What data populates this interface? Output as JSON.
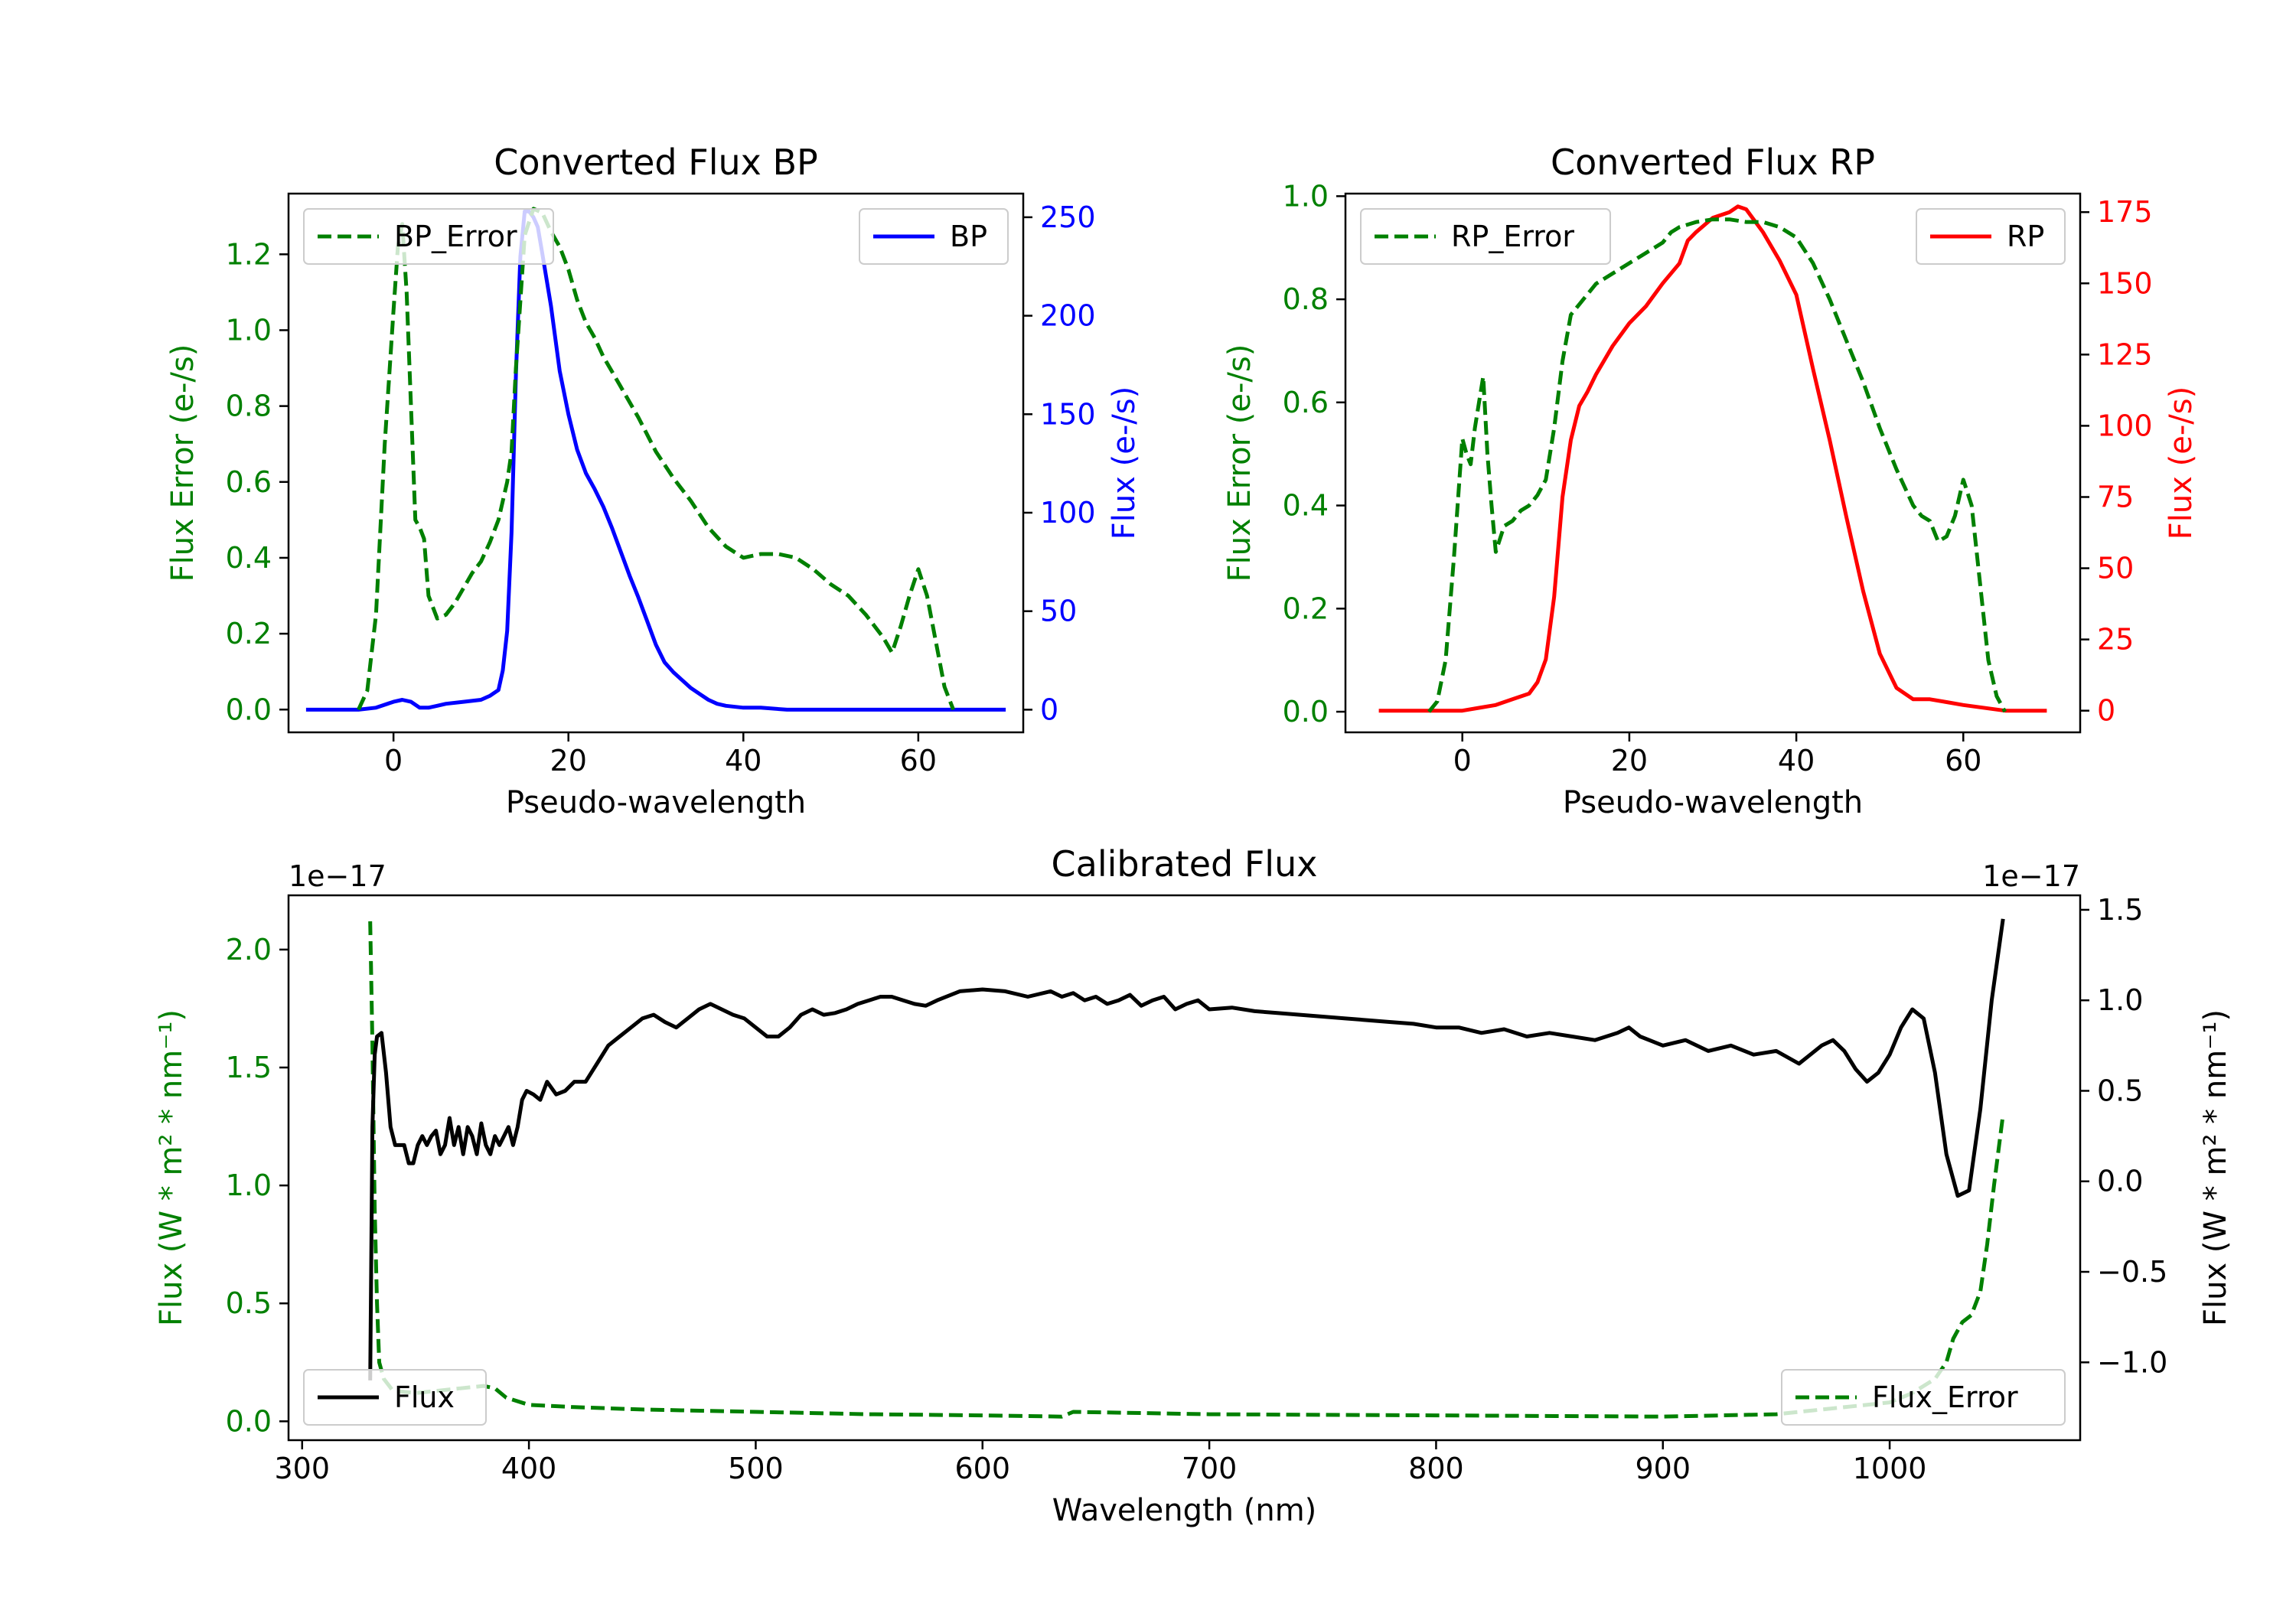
{
  "colors": {
    "bp": "#0000ff",
    "rp": "#ff0000",
    "error": "#008000",
    "flux": "#000000",
    "axis": "#000000"
  },
  "chart_data": [
    {
      "id": "bp",
      "type": "line",
      "title": "Converted Flux BP",
      "xlabel": "Pseudo-wavelength",
      "ylabel_left": "Flux Error (e-/s)",
      "ylabel_right": "Flux (e-/s)",
      "xlim": [
        -12,
        72
      ],
      "ylim_left": [
        -0.06,
        1.36
      ],
      "ylim_right": [
        -11.5,
        262
      ],
      "xticks": [
        0,
        20,
        40,
        60
      ],
      "yticks_left": [
        0.0,
        0.2,
        0.4,
        0.6,
        0.8,
        1.0,
        1.2
      ],
      "yticks_left_labels": [
        "0.0",
        "0.2",
        "0.4",
        "0.6",
        "0.8",
        "1.0",
        "1.2"
      ],
      "yticks_right": [
        0,
        50,
        100,
        150,
        200,
        250
      ],
      "yticks_right_labels": [
        "0",
        "50",
        "100",
        "150",
        "200",
        "250"
      ],
      "legend_left": {
        "label": "BP_Error",
        "position": "top-left"
      },
      "legend_right": {
        "label": "BP",
        "position": "top-right"
      },
      "series": [
        {
          "name": "BP_Error",
          "axis": "left",
          "style": "dashed",
          "color": "#008000",
          "x": [
            -4,
            -3,
            -2,
            -1,
            0,
            0.5,
            1,
            1.5,
            2,
            2.5,
            3,
            3.5,
            4,
            5,
            6,
            7,
            8,
            9,
            10,
            11,
            12,
            13,
            13.5,
            14,
            15,
            16,
            17,
            18,
            19,
            20,
            21,
            22,
            23,
            24,
            25,
            26,
            28,
            30,
            32,
            34,
            36,
            38,
            40,
            42,
            44,
            46,
            48,
            50,
            52,
            54,
            56,
            57,
            58,
            59,
            60,
            61,
            62,
            63,
            64
          ],
          "y": [
            0.0,
            0.05,
            0.25,
            0.7,
            1.05,
            1.22,
            1.28,
            1.1,
            0.8,
            0.5,
            0.48,
            0.45,
            0.3,
            0.24,
            0.25,
            0.28,
            0.32,
            0.36,
            0.39,
            0.44,
            0.5,
            0.6,
            0.68,
            0.9,
            1.25,
            1.32,
            1.31,
            1.26,
            1.22,
            1.16,
            1.08,
            1.02,
            0.98,
            0.93,
            0.89,
            0.85,
            0.77,
            0.68,
            0.61,
            0.55,
            0.48,
            0.43,
            0.4,
            0.41,
            0.41,
            0.4,
            0.37,
            0.33,
            0.3,
            0.25,
            0.19,
            0.15,
            0.22,
            0.3,
            0.37,
            0.3,
            0.18,
            0.06,
            0.0
          ]
        },
        {
          "name": "BP",
          "axis": "right",
          "style": "solid",
          "color": "#0000ff",
          "x": [
            -10,
            -6,
            -4,
            -2,
            0,
            1,
            2,
            3,
            4,
            5,
            6,
            8,
            10,
            11,
            12,
            12.5,
            13,
            13.5,
            14,
            14.5,
            15,
            15.5,
            16,
            16.5,
            17,
            18,
            19,
            20,
            21,
            22,
            23,
            24,
            25,
            26,
            27,
            28,
            29,
            30,
            31,
            32,
            33,
            34,
            35,
            36,
            37,
            38,
            40,
            42,
            45,
            50,
            55,
            60,
            65,
            70
          ],
          "y": [
            0,
            0,
            0,
            1,
            4,
            5,
            4,
            1,
            1,
            2,
            3,
            4,
            5,
            7,
            10,
            20,
            40,
            90,
            170,
            230,
            253,
            253,
            250,
            245,
            232,
            205,
            172,
            150,
            132,
            120,
            112,
            103,
            92,
            80,
            68,
            57,
            45,
            33,
            24,
            19,
            15,
            11,
            8,
            5,
            3,
            2,
            1,
            1,
            0,
            0,
            0,
            0,
            0,
            0
          ]
        }
      ]
    },
    {
      "id": "rp",
      "type": "line",
      "title": "Converted Flux RP",
      "xlabel": "Pseudo-wavelength",
      "ylabel_left": "Flux Error (e-/s)",
      "ylabel_right": "Flux (e-/s)",
      "xlim": [
        -14,
        74
      ],
      "ylim_left": [
        -0.04,
        1.005
      ],
      "ylim_right": [
        -7.6,
        181.5
      ],
      "xticks": [
        0,
        20,
        40,
        60
      ],
      "yticks_left": [
        0.0,
        0.2,
        0.4,
        0.6,
        0.8,
        1.0
      ],
      "yticks_left_labels": [
        "0.0",
        "0.2",
        "0.4",
        "0.6",
        "0.8",
        "1.0"
      ],
      "yticks_right": [
        0,
        25,
        50,
        75,
        100,
        125,
        150,
        175
      ],
      "yticks_right_labels": [
        "0",
        "25",
        "50",
        "75",
        "100",
        "125",
        "150",
        "175"
      ],
      "legend_left": {
        "label": "RP_Error",
        "position": "top-left"
      },
      "legend_right": {
        "label": "RP",
        "position": "top-right"
      },
      "series": [
        {
          "name": "RP_Error",
          "axis": "left",
          "style": "dashed",
          "color": "#008000",
          "x": [
            -4,
            -3,
            -2,
            -1,
            0,
            0.5,
            1,
            1.5,
            2,
            2.5,
            3,
            3.5,
            4,
            5,
            6,
            7,
            8,
            9,
            10,
            11,
            12,
            13,
            14,
            16,
            18,
            20,
            22,
            24,
            25,
            26,
            28,
            30,
            32,
            34,
            36,
            38,
            40,
            42,
            44,
            46,
            48,
            50,
            52,
            54,
            55,
            56,
            57,
            58,
            59,
            60,
            61,
            62,
            63,
            64,
            65
          ],
          "y": [
            0.0,
            0.02,
            0.1,
            0.3,
            0.53,
            0.5,
            0.48,
            0.55,
            0.6,
            0.65,
            0.5,
            0.4,
            0.31,
            0.36,
            0.37,
            0.39,
            0.4,
            0.42,
            0.45,
            0.55,
            0.68,
            0.77,
            0.79,
            0.83,
            0.85,
            0.87,
            0.89,
            0.91,
            0.93,
            0.94,
            0.95,
            0.955,
            0.955,
            0.95,
            0.95,
            0.94,
            0.92,
            0.87,
            0.8,
            0.72,
            0.64,
            0.55,
            0.47,
            0.4,
            0.38,
            0.37,
            0.33,
            0.34,
            0.38,
            0.45,
            0.4,
            0.25,
            0.1,
            0.03,
            0.0
          ]
        },
        {
          "name": "RP",
          "axis": "right",
          "style": "solid",
          "color": "#ff0000",
          "x": [
            -10,
            -4,
            0,
            2,
            4,
            6,
            8,
            9,
            10,
            11,
            12,
            13,
            14,
            15,
            16,
            18,
            20,
            22,
            24,
            26,
            27,
            28,
            30,
            32,
            33,
            34,
            36,
            38,
            40,
            42,
            44,
            46,
            48,
            50,
            52,
            54,
            56,
            58,
            60,
            65,
            70
          ],
          "y": [
            0,
            0,
            0,
            1,
            2,
            4,
            6,
            10,
            18,
            40,
            75,
            95,
            107,
            112,
            118,
            128,
            136,
            142,
            150,
            157,
            165,
            168,
            173,
            175,
            177,
            176,
            168,
            158,
            146,
            120,
            95,
            68,
            42,
            20,
            8,
            4,
            4,
            3,
            2,
            0,
            0
          ]
        }
      ]
    },
    {
      "id": "cal",
      "type": "line",
      "title": "Calibrated Flux",
      "xlabel": "Wavelength (nm)",
      "ylabel_left": "Flux (W * m² * nm⁻¹)",
      "ylabel_right": "Flux (W * m² * nm⁻¹)",
      "offset_left": "1e−17",
      "offset_right": "1e−17",
      "xlim": [
        294,
        1084
      ],
      "ylim_left": [
        -0.08,
        2.23
      ],
      "ylim_right": [
        -1.43,
        1.58
      ],
      "xticks": [
        300,
        400,
        500,
        600,
        700,
        800,
        900,
        1000
      ],
      "yticks_left": [
        0.0,
        0.5,
        1.0,
        1.5,
        2.0
      ],
      "yticks_left_labels": [
        "0.0",
        "0.5",
        "1.0",
        "1.5",
        "2.0"
      ],
      "yticks_right": [
        -1.0,
        -0.5,
        0.0,
        0.5,
        1.0,
        1.5
      ],
      "yticks_right_labels": [
        "−1.0",
        "−0.5",
        "0.0",
        "0.5",
        "1.0",
        "1.5"
      ],
      "legend_left": {
        "label": "Flux",
        "position": "bottom-left"
      },
      "legend_right": {
        "label": "Flux_Error",
        "position": "bottom-right"
      },
      "series": [
        {
          "name": "Flux_Error",
          "axis": "left",
          "style": "dashed",
          "color": "#008000",
          "x": [
            330,
            331,
            332,
            333,
            334,
            336,
            340,
            350,
            360,
            370,
            380,
            385,
            390,
            400,
            420,
            450,
            500,
            550,
            600,
            635,
            640,
            700,
            800,
            900,
            950,
            1000,
            1010,
            1020,
            1025,
            1028,
            1032,
            1036,
            1040,
            1043,
            1046,
            1050
          ],
          "y": [
            2.12,
            1.6,
            0.9,
            0.5,
            0.25,
            0.18,
            0.13,
            0.12,
            0.13,
            0.14,
            0.15,
            0.14,
            0.1,
            0.07,
            0.06,
            0.05,
            0.04,
            0.03,
            0.025,
            0.02,
            0.04,
            0.03,
            0.025,
            0.02,
            0.03,
            0.08,
            0.12,
            0.18,
            0.25,
            0.35,
            0.42,
            0.45,
            0.55,
            0.75,
            1.0,
            1.3
          ]
        },
        {
          "name": "Flux",
          "axis": "right",
          "style": "solid",
          "color": "#000000",
          "x": [
            330,
            331,
            332,
            333,
            335,
            337,
            339,
            341,
            343,
            345,
            347,
            349,
            351,
            353,
            355,
            357,
            359,
            361,
            363,
            365,
            367,
            369,
            371,
            373,
            375,
            377,
            379,
            381,
            383,
            385,
            387,
            389,
            391,
            393,
            395,
            397,
            399,
            402,
            405,
            408,
            412,
            416,
            420,
            425,
            430,
            435,
            440,
            445,
            450,
            455,
            460,
            465,
            470,
            475,
            480,
            485,
            490,
            495,
            500,
            505,
            510,
            515,
            520,
            525,
            530,
            535,
            540,
            545,
            550,
            555,
            560,
            565,
            570,
            575,
            580,
            590,
            600,
            610,
            620,
            630,
            635,
            640,
            645,
            650,
            655,
            660,
            665,
            670,
            675,
            680,
            685,
            690,
            695,
            700,
            710,
            720,
            730,
            740,
            750,
            760,
            770,
            780,
            790,
            800,
            810,
            820,
            830,
            840,
            850,
            860,
            870,
            880,
            885,
            890,
            900,
            910,
            920,
            930,
            940,
            950,
            960,
            965,
            970,
            975,
            980,
            985,
            990,
            995,
            1000,
            1005,
            1010,
            1015,
            1020,
            1025,
            1030,
            1035,
            1040,
            1045,
            1050
          ],
          "y": [
            -1.1,
            0.3,
            0.7,
            0.8,
            0.82,
            0.6,
            0.3,
            0.2,
            0.2,
            0.2,
            0.1,
            0.1,
            0.2,
            0.25,
            0.2,
            0.25,
            0.28,
            0.15,
            0.2,
            0.35,
            0.2,
            0.3,
            0.15,
            0.3,
            0.25,
            0.15,
            0.32,
            0.2,
            0.15,
            0.25,
            0.2,
            0.25,
            0.3,
            0.2,
            0.3,
            0.45,
            0.5,
            0.48,
            0.45,
            0.55,
            0.48,
            0.5,
            0.55,
            0.55,
            0.65,
            0.75,
            0.8,
            0.85,
            0.9,
            0.92,
            0.88,
            0.85,
            0.9,
            0.95,
            0.98,
            0.95,
            0.92,
            0.9,
            0.85,
            0.8,
            0.8,
            0.85,
            0.92,
            0.95,
            0.92,
            0.93,
            0.95,
            0.98,
            1.0,
            1.02,
            1.02,
            1.0,
            0.98,
            0.97,
            1.0,
            1.05,
            1.06,
            1.05,
            1.02,
            1.05,
            1.02,
            1.04,
            1.0,
            1.02,
            0.98,
            1.0,
            1.03,
            0.97,
            1.0,
            1.02,
            0.95,
            0.98,
            1.0,
            0.95,
            0.96,
            0.94,
            0.93,
            0.92,
            0.91,
            0.9,
            0.89,
            0.88,
            0.87,
            0.85,
            0.85,
            0.82,
            0.84,
            0.8,
            0.82,
            0.8,
            0.78,
            0.82,
            0.85,
            0.8,
            0.75,
            0.78,
            0.72,
            0.75,
            0.7,
            0.72,
            0.65,
            0.7,
            0.75,
            0.78,
            0.72,
            0.62,
            0.55,
            0.6,
            0.7,
            0.85,
            0.95,
            0.9,
            0.6,
            0.15,
            -0.08,
            -0.05,
            0.4,
            1.0,
            1.45
          ]
        }
      ]
    }
  ]
}
